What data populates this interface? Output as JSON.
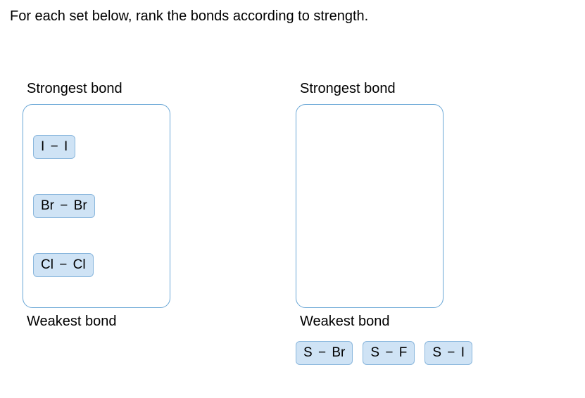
{
  "instruction": "For each set below, rank the bonds according to strength.",
  "labels": {
    "strongest": "Strongest bond",
    "weakest": "Weakest bond"
  },
  "columns": {
    "left": {
      "items": [
        {
          "left": "I",
          "right": "I"
        },
        {
          "left": "Br",
          "right": "Br"
        },
        {
          "left": "Cl",
          "right": "Cl"
        }
      ]
    },
    "right": {
      "items": []
    }
  },
  "pool": [
    {
      "left": "S",
      "right": "Br"
    },
    {
      "left": "S",
      "right": "F"
    },
    {
      "left": "S",
      "right": "I"
    }
  ],
  "style": {
    "chip_bg": "#cfe3f5",
    "chip_border": "#8ab7dd",
    "dropzone_border": "#6aa7d6",
    "background": "#ffffff",
    "text_color": "#000000",
    "font_size_instruction": 20,
    "font_size_label": 20,
    "font_size_chip": 19,
    "dash": "−"
  }
}
